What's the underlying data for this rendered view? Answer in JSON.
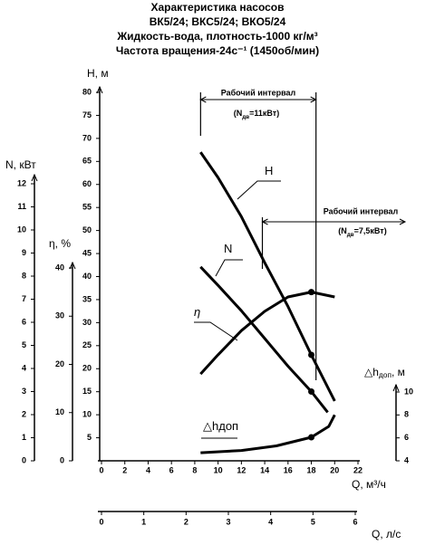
{
  "chart_data": {
    "type": "line",
    "title_lines": [
      "Характеристика насосов",
      "ВК5/24; ВКС5/24; ВКО5/24",
      "Жидкость-вода, плотность-1000 кг/м³",
      "Частота вращения-24с⁻¹ (1450об/мин)"
    ],
    "x_label": "Q, м³/ч",
    "xlim": [
      0,
      22
    ],
    "xticks": [
      0,
      2,
      4,
      6,
      8,
      10,
      12,
      14,
      16,
      18,
      20,
      22
    ],
    "x2_label": "Q, л/с",
    "x2lim": [
      0,
      6
    ],
    "x2ticks": [
      0,
      1,
      2,
      3,
      4,
      5,
      6
    ],
    "axes": [
      {
        "label_parts": [
          "H, м"
        ],
        "lim": [
          0,
          80
        ],
        "ticks": [
          5,
          10,
          15,
          20,
          25,
          30,
          35,
          40,
          45,
          50,
          55,
          60,
          65,
          70,
          75,
          80
        ]
      },
      {
        "label_parts": [
          "N, кВт"
        ],
        "lim": [
          0,
          12
        ],
        "ticks": [
          0,
          1,
          2,
          3,
          4,
          5,
          6,
          7,
          8,
          9,
          10,
          11,
          12
        ]
      },
      {
        "label_parts": [
          "η, %"
        ],
        "lim": [
          0,
          40
        ],
        "ticks": [
          0,
          10,
          20,
          30,
          40
        ]
      },
      {
        "label_parts": [
          "△h",
          "доп",
          ", м"
        ],
        "lim": [
          4,
          10
        ],
        "ticks": [
          4,
          6,
          8,
          10
        ]
      }
    ],
    "operating_q": 18,
    "series": [
      {
        "name_parts": [
          "H"
        ],
        "axis": 0,
        "color": "#000000",
        "x": [
          8.5,
          10,
          12,
          14,
          16,
          18,
          20
        ],
        "values": [
          67,
          61.5,
          53,
          43,
          33.5,
          23,
          13
        ]
      },
      {
        "name_parts": [
          "N"
        ],
        "axis": 1,
        "color": "#000000",
        "x": [
          8.5,
          10,
          12,
          14,
          16,
          18,
          19.4
        ],
        "values": [
          8.4,
          7.6,
          6.5,
          5.3,
          4.1,
          3.0,
          2.1
        ]
      },
      {
        "name_parts": [
          "η"
        ],
        "axis": 2,
        "color": "#000000",
        "x": [
          8.5,
          10,
          12,
          14,
          16,
          18,
          20
        ],
        "values": [
          18,
          22,
          27,
          31,
          34,
          35,
          34
        ]
      },
      {
        "name_parts": [
          "△h",
          "доп"
        ],
        "axis": 3,
        "color": "#000000",
        "x": [
          8.5,
          12,
          15,
          18,
          19.5,
          20
        ],
        "values": [
          4.7,
          4.9,
          5.3,
          6.05,
          7,
          8
        ]
      }
    ],
    "intervals": [
      {
        "label": "Рабочий интервал",
        "note_parts": [
          "(N",
          "дв",
          "=11кВт)"
        ],
        "q": [
          8.5,
          18.4
        ]
      },
      {
        "label": "Рабочий интервал",
        "note_parts": [
          "(N",
          "дв",
          "=7,5кВт)"
        ],
        "q": [
          13.8
        ]
      }
    ]
  }
}
